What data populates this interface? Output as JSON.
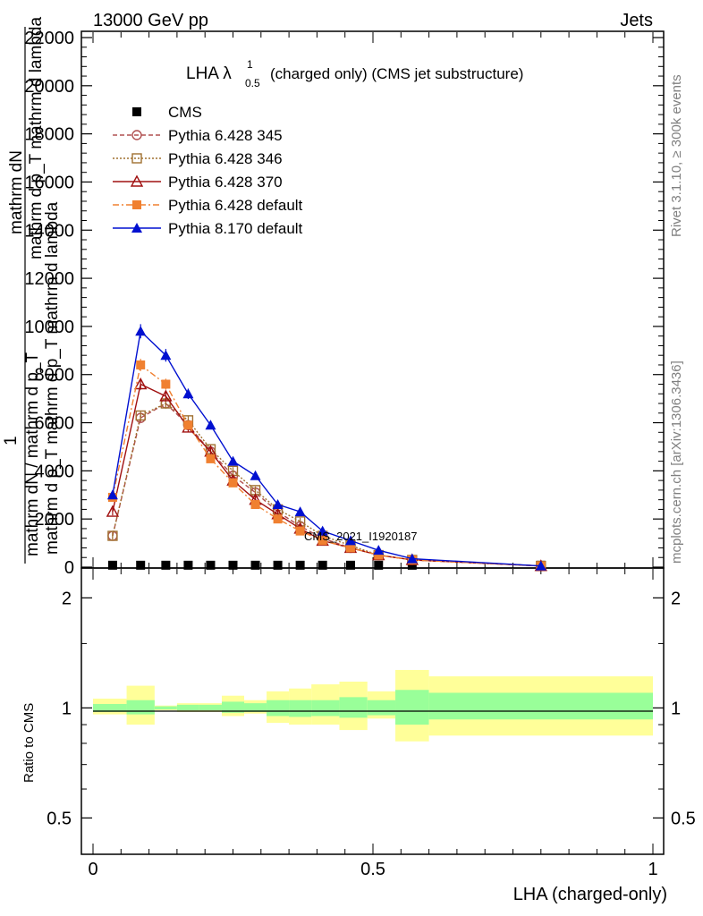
{
  "header": {
    "left": "13000 GeV pp",
    "right": "Jets"
  },
  "side_labels": {
    "top": "Rivet 3.1.10, ≥ 300k events",
    "bottom": "mcplots.cern.ch [arXiv:1306.3436]"
  },
  "watermark": "CMS_2021_I1920187",
  "main_plot": {
    "title_main": "LHA λ",
    "title_sup": "1",
    "title_sub": "0.5",
    "title_rest": "(charged only) (CMS jet substructure)",
    "ylabel_numerator": "mathrm dN",
    "ylabel_numerator2": "mathrm d p_T mathrm d lambda",
    "ylabel_one": "1",
    "ylabel_denominator": "mathrm dN / mathrm d p_T",
    "ylabel_denominator2": "mathrm d p_T mathrm d p_T mathrm d lambda"
  },
  "ratio_plot": {
    "ylabel": "Ratio to CMS"
  },
  "x_axis_label": "LHA (charged-only)",
  "chart_data": [
    {
      "type": "line",
      "panel": "main",
      "xlim": [
        0,
        1
      ],
      "ylim": [
        0,
        22000
      ],
      "y_ticks": [
        "0",
        "2000",
        "4000",
        "6000",
        "8000",
        "10000",
        "12000",
        "14000",
        "16000",
        "18000",
        "20000",
        "22000"
      ],
      "x_ticks": [
        "0",
        "0.5",
        "1"
      ],
      "x": [
        0.035,
        0.085,
        0.13,
        0.17,
        0.21,
        0.25,
        0.29,
        0.33,
        0.37,
        0.41,
        0.46,
        0.51,
        0.57,
        0.8
      ],
      "series": [
        {
          "name": "CMS",
          "style": "marker-only",
          "marker": "square-filled",
          "color": "#000000",
          "values": [
            80,
            80,
            80,
            80,
            80,
            80,
            80,
            80,
            80,
            80,
            80,
            80,
            80,
            80
          ]
        },
        {
          "name": "Pythia 6.428 345",
          "style": "dashed",
          "marker": "circle-open",
          "color": "#b05050",
          "values": [
            1300,
            6200,
            6800,
            5900,
            4800,
            3800,
            3100,
            2300,
            1700,
            1200,
            800,
            500,
            300,
            50
          ]
        },
        {
          "name": "Pythia 6.428 346",
          "style": "dotted",
          "marker": "square-open",
          "color": "#a07030",
          "values": [
            1300,
            6300,
            6800,
            6100,
            4900,
            4000,
            3200,
            2400,
            1900,
            1300,
            900,
            500,
            300,
            50
          ]
        },
        {
          "name": "Pythia 6.428 370",
          "style": "solid",
          "marker": "triangle-open",
          "color": "#a01010",
          "values": [
            2300,
            7600,
            7100,
            5800,
            4800,
            3600,
            2800,
            2200,
            1600,
            1100,
            800,
            500,
            300,
            50
          ]
        },
        {
          "name": "Pythia 6.428 default",
          "style": "dashdot",
          "marker": "square-filled",
          "color": "#f08030",
          "values": [
            2900,
            8400,
            7600,
            5900,
            4500,
            3500,
            2600,
            2000,
            1500,
            1100,
            800,
            500,
            300,
            50
          ]
        },
        {
          "name": "Pythia 8.170 default",
          "style": "solid",
          "marker": "triangle-filled",
          "color": "#0010d0",
          "values": [
            3000,
            9800,
            8800,
            7200,
            5900,
            4400,
            3800,
            2600,
            2300,
            1500,
            1100,
            700,
            350,
            50
          ]
        }
      ],
      "legend_placement": "top-left"
    },
    {
      "type": "area",
      "panel": "ratio",
      "xlim": [
        0,
        1
      ],
      "ylim_log": [
        0.4,
        2.4
      ],
      "y_ticks": [
        "0.5",
        "1",
        "2"
      ],
      "x_ticks": [
        "0",
        "0.5",
        "1"
      ],
      "bins": [
        [
          0.0,
          0.06
        ],
        [
          0.06,
          0.11
        ],
        [
          0.11,
          0.15
        ],
        [
          0.15,
          0.19
        ],
        [
          0.19,
          0.23
        ],
        [
          0.23,
          0.27
        ],
        [
          0.27,
          0.31
        ],
        [
          0.31,
          0.35
        ],
        [
          0.35,
          0.39
        ],
        [
          0.39,
          0.44
        ],
        [
          0.44,
          0.49
        ],
        [
          0.49,
          0.54
        ],
        [
          0.54,
          0.6
        ],
        [
          0.6,
          1.0
        ]
      ],
      "stat_band": [
        [
          0.975,
          1.025
        ],
        [
          0.96,
          1.05
        ],
        [
          0.99,
          1.01
        ],
        [
          0.985,
          1.02
        ],
        [
          0.985,
          1.02
        ],
        [
          0.97,
          1.04
        ],
        [
          0.975,
          1.03
        ],
        [
          0.95,
          1.05
        ],
        [
          0.945,
          1.05
        ],
        [
          0.95,
          1.05
        ],
        [
          0.94,
          1.07
        ],
        [
          0.955,
          1.05
        ],
        [
          0.9,
          1.12
        ],
        [
          0.93,
          1.1
        ]
      ],
      "total_band": [
        [
          0.96,
          1.06
        ],
        [
          0.9,
          1.15
        ],
        [
          0.985,
          1.015
        ],
        [
          0.975,
          1.03
        ],
        [
          0.975,
          1.03
        ],
        [
          0.95,
          1.08
        ],
        [
          0.965,
          1.05
        ],
        [
          0.91,
          1.11
        ],
        [
          0.9,
          1.13
        ],
        [
          0.9,
          1.16
        ],
        [
          0.87,
          1.18
        ],
        [
          0.935,
          1.11
        ],
        [
          0.81,
          1.27
        ],
        [
          0.84,
          1.22
        ]
      ],
      "band_colors": {
        "stat": "#99ff99",
        "total": "#ffff99"
      },
      "reference_line": 1
    }
  ]
}
